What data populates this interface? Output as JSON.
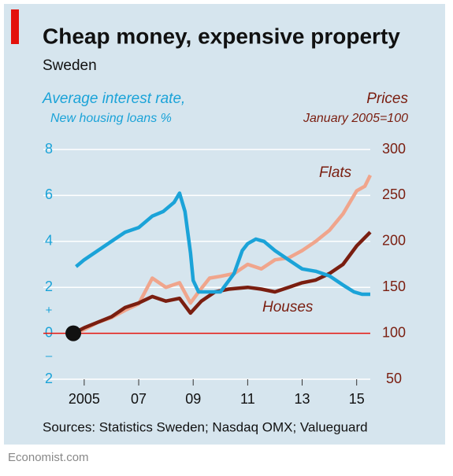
{
  "chart_data": {
    "type": "line",
    "title": "Cheap money, expensive property",
    "subtitle": "Sweden",
    "y_label": [
      "Average interest rate,",
      "New housing loans %"
    ],
    "y2_label": [
      "Prices",
      "January 2005=100"
    ],
    "annotations": [
      "+",
      "–"
    ],
    "source": "Sources: Statistics Sweden; Nasdaq OMX; Valueguard",
    "credit": "Economist.com",
    "xlim": [
      2003.5,
      2015.5
    ],
    "xticks": [
      2005,
      {
        "value": 2007,
        "label": "07"
      },
      {
        "value": 2009,
        "label": "09"
      },
      {
        "value": 2011,
        "label": "11"
      },
      {
        "value": 2013,
        "label": "13"
      },
      {
        "value": 2015,
        "label": "15"
      }
    ],
    "ylim": [
      -2,
      8
    ],
    "yticks": [
      {
        "value": -2,
        "label": "2"
      },
      0,
      2,
      4,
      6,
      8
    ],
    "y2lim": [
      50,
      300
    ],
    "y2ticks": [
      50,
      100,
      150,
      200,
      250,
      300
    ],
    "grid": true,
    "series": [
      {
        "color": "#1ba3d8",
        "x": [
          2004.7,
          2005.0,
          2005.5,
          2006.0,
          2006.5,
          2007.0,
          2007.5,
          2007.9,
          2008.3,
          2008.5,
          2008.7,
          2008.9,
          2009.0,
          2009.2,
          2009.5,
          2010.0,
          2010.5,
          2010.8,
          2011.0,
          2011.3,
          2011.6,
          2012.0,
          2012.5,
          2013.0,
          2013.5,
          2014.0,
          2014.5,
          2014.9,
          2015.2,
          2015.5
        ],
        "values": [
          2.9,
          3.2,
          3.6,
          4.0,
          4.4,
          4.6,
          5.1,
          5.3,
          5.7,
          6.1,
          5.3,
          3.5,
          2.3,
          1.8,
          1.8,
          1.8,
          2.6,
          3.6,
          3.9,
          4.1,
          4.0,
          3.6,
          3.2,
          2.8,
          2.7,
          2.5,
          2.1,
          1.8,
          1.7,
          1.7
        ]
      },
      {
        "name": "Flats",
        "color": "#f0a58c",
        "axis": "y2",
        "x": [
          2004.6,
          2005.0,
          2005.5,
          2006.0,
          2006.5,
          2007.0,
          2007.5,
          2008.0,
          2008.5,
          2008.9,
          2009.2,
          2009.6,
          2010.0,
          2010.5,
          2011.0,
          2011.5,
          2012.0,
          2012.5,
          2013.0,
          2013.5,
          2014.0,
          2014.5,
          2015.0,
          2015.3,
          2015.5
        ],
        "values": [
          100,
          104,
          112,
          117,
          125,
          132,
          160,
          150,
          155,
          133,
          145,
          160,
          162,
          165,
          175,
          170,
          180,
          182,
          190,
          200,
          212,
          230,
          255,
          260,
          272
        ]
      },
      {
        "name": "Houses",
        "color": "#7a1e10",
        "axis": "y2",
        "x": [
          2004.6,
          2005.0,
          2005.5,
          2006.0,
          2006.5,
          2007.0,
          2007.5,
          2008.0,
          2008.5,
          2008.9,
          2009.3,
          2009.8,
          2010.3,
          2011.0,
          2011.5,
          2012.0,
          2012.5,
          2013.0,
          2013.5,
          2014.0,
          2014.5,
          2015.0,
          2015.5
        ],
        "values": [
          100,
          106,
          112,
          118,
          128,
          133,
          140,
          135,
          138,
          122,
          135,
          145,
          148,
          150,
          148,
          145,
          150,
          155,
          158,
          165,
          175,
          195,
          210
        ]
      }
    ]
  }
}
